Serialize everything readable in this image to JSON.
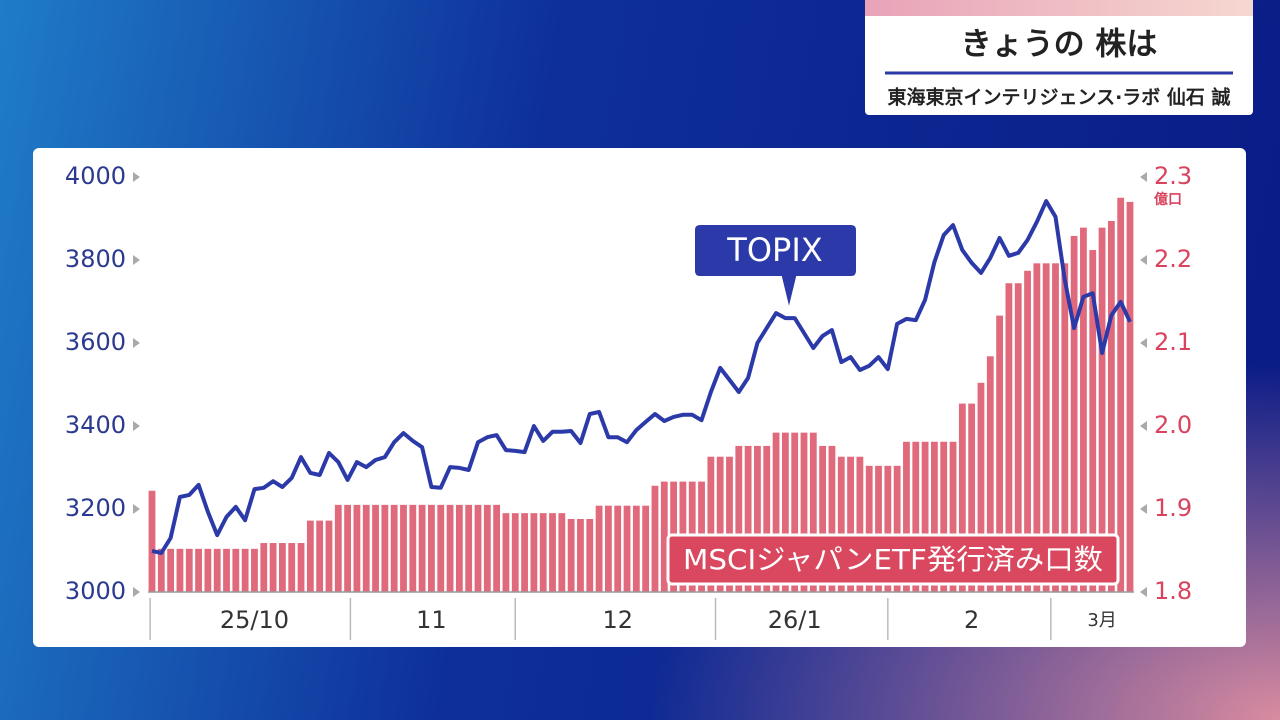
{
  "header": {
    "title": "きょうの 株は",
    "subtitle": "東海東京インテリジェンス·ラボ 仙石 誠"
  },
  "chart_data": {
    "type": "combo",
    "categories": [
      null,
      null,
      null,
      null,
      null,
      null,
      null,
      null,
      null,
      null,
      null,
      "25/10",
      null,
      null,
      null,
      null,
      null,
      null,
      null,
      null,
      null,
      null,
      null,
      null,
      null,
      null,
      null,
      null,
      null,
      null,
      "11",
      null,
      null,
      null,
      null,
      null,
      null,
      null,
      null,
      null,
      null,
      null,
      null,
      null,
      null,
      null,
      null,
      null,
      null,
      null,
      "12",
      null,
      null,
      null,
      null,
      null,
      null,
      null,
      null,
      null,
      null,
      null,
      null,
      null,
      null,
      null,
      null,
      null,
      null,
      "26/1",
      null,
      null,
      null,
      null,
      null,
      null,
      null,
      null,
      null,
      null,
      null,
      null,
      null,
      null,
      null,
      null,
      null,
      null,
      "2",
      null,
      null,
      null,
      null,
      null,
      null,
      null,
      null,
      null,
      null,
      null,
      null,
      null,
      "3月",
      null,
      null,
      null
    ],
    "series": [
      {
        "name": "MSCIジャパンETF発行済み口数",
        "type": "bar",
        "axis": "y2",
        "color": "#e06a7c",
        "values": [
          1.922,
          1.852,
          1.852,
          1.852,
          1.852,
          1.852,
          1.852,
          1.852,
          1.852,
          1.852,
          1.852,
          1.852,
          1.859,
          1.859,
          1.859,
          1.859,
          1.859,
          1.886,
          1.886,
          1.886,
          1.905,
          1.905,
          1.905,
          1.905,
          1.905,
          1.905,
          1.905,
          1.905,
          1.905,
          1.905,
          1.905,
          1.905,
          1.905,
          1.905,
          1.905,
          1.905,
          1.905,
          1.905,
          1.895,
          1.895,
          1.895,
          1.895,
          1.895,
          1.895,
          1.895,
          1.888,
          1.888,
          1.888,
          1.904,
          1.904,
          1.904,
          1.904,
          1.904,
          1.904,
          1.928,
          1.933,
          1.933,
          1.933,
          1.933,
          1.933,
          1.963,
          1.963,
          1.963,
          1.976,
          1.976,
          1.976,
          1.976,
          1.992,
          1.992,
          1.992,
          1.992,
          1.992,
          1.976,
          1.976,
          1.963,
          1.963,
          1.963,
          1.952,
          1.952,
          1.952,
          1.952,
          1.981,
          1.981,
          1.981,
          1.981,
          1.981,
          1.981,
          2.027,
          2.027,
          2.052,
          2.084,
          2.133,
          2.172,
          2.172,
          2.187,
          2.196,
          2.196,
          2.196,
          2.196,
          2.229,
          2.239,
          2.212,
          2.239,
          2.247,
          2.275,
          2.27
        ]
      },
      {
        "name": "TOPIX",
        "type": "line",
        "axis": "y",
        "color": "#2b3aa8",
        "values": [
          3099,
          3094,
          3130,
          3229,
          3234,
          3258,
          3193,
          3137,
          3181,
          3205,
          3173,
          3248,
          3251,
          3267,
          3253,
          3275,
          3325,
          3287,
          3282,
          3335,
          3313,
          3270,
          3313,
          3301,
          3318,
          3325,
          3361,
          3383,
          3364,
          3349,
          3253,
          3251,
          3301,
          3299,
          3294,
          3361,
          3373,
          3378,
          3342,
          3340,
          3337,
          3400,
          3364,
          3386,
          3386,
          3388,
          3359,
          3429,
          3434,
          3373,
          3373,
          3361,
          3390,
          3410,
          3429,
          3412,
          3422,
          3427,
          3427,
          3414,
          3482,
          3540,
          3511,
          3482,
          3516,
          3600,
          3636,
          3672,
          3660,
          3660,
          3624,
          3588,
          3617,
          3631,
          3554,
          3566,
          3535,
          3545,
          3566,
          3537,
          3646,
          3658,
          3655,
          3704,
          3795,
          3860,
          3884,
          3824,
          3793,
          3769,
          3805,
          3853,
          3810,
          3817,
          3848,
          3892,
          3942,
          3904,
          3752,
          3636,
          3711,
          3720,
          3576,
          3667,
          3699,
          3651
        ]
      }
    ],
    "ylim": [
      3000,
      4000
    ],
    "yticks": [
      3000,
      3200,
      3400,
      3600,
      3800,
      4000
    ],
    "y2lim": [
      1.8,
      2.3
    ],
    "y2ticks": [
      1.8,
      1.9,
      {
        "value": 2,
        "label": "2.0"
      },
      2.1,
      2.2,
      2.3
    ],
    "y2_unit": "億口"
  }
}
